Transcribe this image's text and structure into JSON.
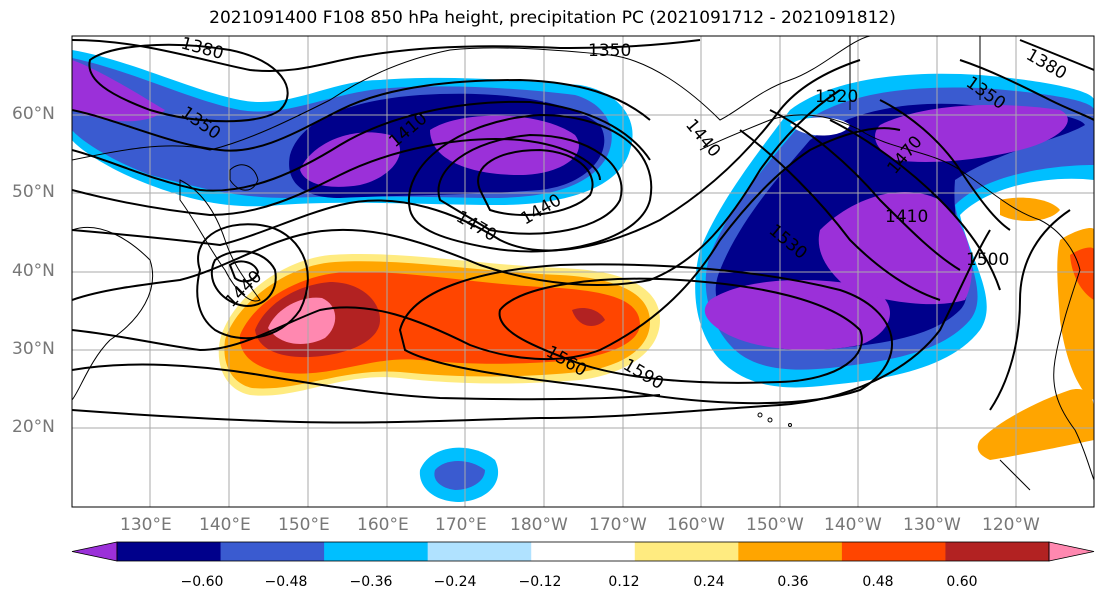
{
  "title": "2021091400 F108 850 hPa height, precipitation PC (2021091712 - 2021091812)",
  "lat_labels": [
    "60°N",
    "50°N",
    "40°N",
    "30°N",
    "20°N"
  ],
  "lon_labels": [
    "130°E",
    "140°E",
    "150°E",
    "160°E",
    "170°E",
    "180°W",
    "170°W",
    "160°W",
    "150°W",
    "140°W",
    "130°W",
    "120°W"
  ],
  "contour_labels": [
    "1350",
    "1350",
    "1380",
    "1380",
    "1350",
    "1320",
    "1410",
    "1440",
    "1470",
    "1470",
    "1440",
    "1440",
    "1530",
    "1410",
    "1500",
    "1560",
    "1590"
  ],
  "colorbar": {
    "colors": [
      "#9b30d9",
      "#00008b",
      "#3a5bd0",
      "#00bfff",
      "#b0e2ff",
      "#ffffff",
      "#ffeb80",
      "#ffa500",
      "#ff4500",
      "#b22222",
      "#ff88b0"
    ],
    "ticks": [
      "−0.60",
      "−0.48",
      "−0.36",
      "−0.24",
      "−0.12",
      "0.12",
      "0.24",
      "0.36",
      "0.48",
      "0.60"
    ]
  }
}
